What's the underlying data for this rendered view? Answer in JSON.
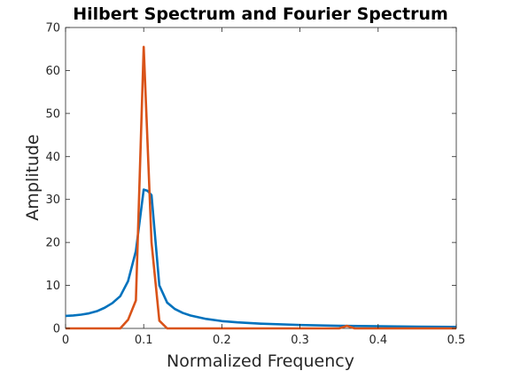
{
  "chart_data": {
    "type": "line",
    "title": "Hilbert Spectrum and Fourier Spectrum",
    "xlabel": "Normalized Frequency",
    "ylabel": "Amplitude",
    "xlim": [
      0,
      0.5
    ],
    "ylim": [
      0,
      70
    ],
    "xticks": [
      0,
      0.1,
      0.2,
      0.3,
      0.4,
      0.5
    ],
    "xtick_labels": [
      "0",
      "0.1",
      "0.2",
      "0.3",
      "0.4",
      "0.5"
    ],
    "yticks": [
      0,
      10,
      20,
      30,
      40,
      50,
      60,
      70
    ],
    "ytick_labels": [
      "0",
      "10",
      "20",
      "30",
      "40",
      "50",
      "60",
      "70"
    ],
    "grid": false,
    "legend": "none",
    "series": [
      {
        "color": "#0072BD",
        "x": [
          0,
          0.01,
          0.02,
          0.03,
          0.04,
          0.05,
          0.06,
          0.07,
          0.08,
          0.09,
          0.1,
          0.105,
          0.11,
          0.12,
          0.13,
          0.14,
          0.15,
          0.16,
          0.18,
          0.2,
          0.22,
          0.25,
          0.3,
          0.35,
          0.4,
          0.45,
          0.5
        ],
        "y": [
          2.9,
          3.0,
          3.2,
          3.5,
          4.0,
          4.8,
          5.9,
          7.5,
          11.0,
          18.0,
          32.3,
          32.0,
          31.0,
          10.0,
          6.0,
          4.5,
          3.6,
          3.0,
          2.2,
          1.7,
          1.4,
          1.1,
          0.8,
          0.6,
          0.5,
          0.4,
          0.35
        ]
      },
      {
        "color": "#D95319",
        "x": [
          0,
          0.06,
          0.07,
          0.08,
          0.09,
          0.1,
          0.11,
          0.12,
          0.13,
          0.14,
          0.35,
          0.36,
          0.37,
          0.38,
          0.5
        ],
        "y": [
          0,
          0,
          0,
          2.0,
          6.5,
          65.5,
          20.0,
          1.8,
          0,
          0,
          0,
          0.6,
          0,
          0,
          0
        ]
      }
    ]
  }
}
